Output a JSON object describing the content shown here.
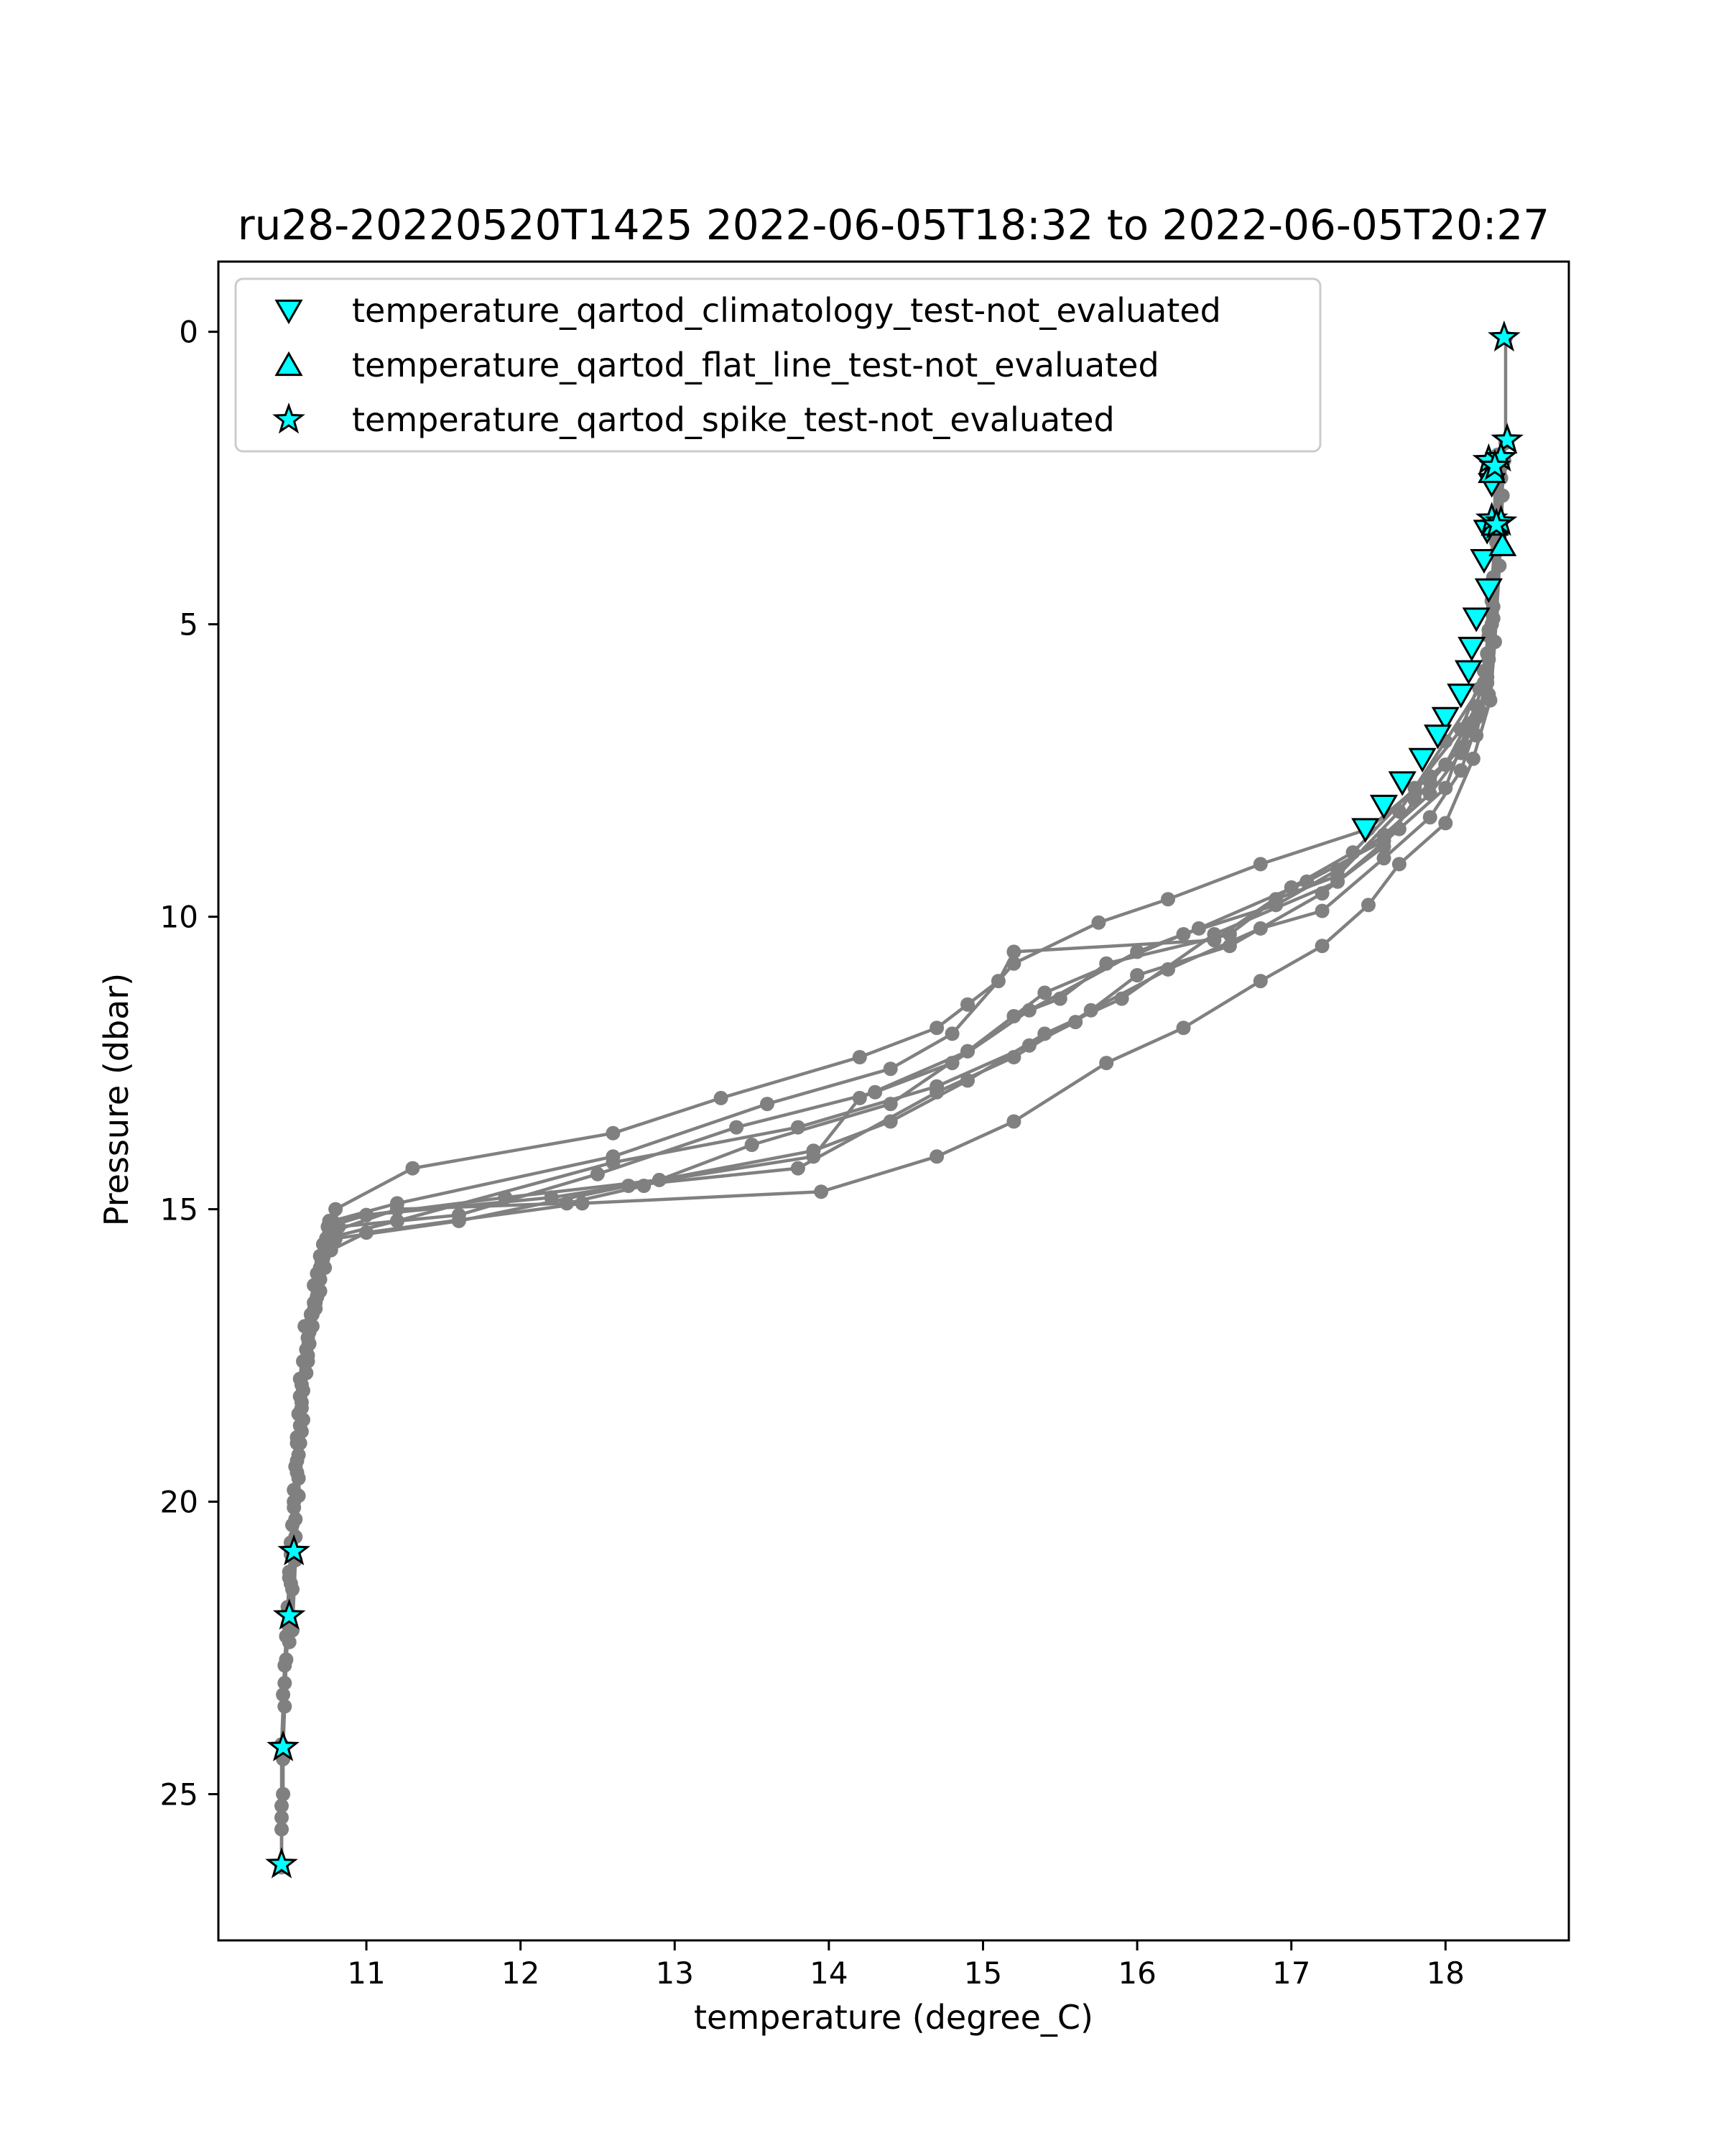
{
  "chart_data": {
    "type": "line",
    "title": "ru28-20220520T1425 2022-06-05T18:32 to 2022-06-05T20:27",
    "xlabel": "temperature (degree_C)",
    "ylabel": "Pressure (dbar)",
    "xlim": [
      10.04,
      18.8
    ],
    "ylim": [
      27.5,
      -1.2
    ],
    "y_inverted": true,
    "x_ticks": [
      11,
      12,
      13,
      14,
      15,
      16,
      17,
      18
    ],
    "y_ticks": [
      0,
      5,
      10,
      15,
      20,
      25
    ],
    "grid": false,
    "legend_position": "top-left",
    "colors": {
      "profile": "#808080",
      "flag_fill": "#00ffff",
      "flag_edge": "#000000"
    },
    "series": [
      {
        "type": "line",
        "points": [
          [
            18.39,
            0.1
          ],
          [
            18.39,
            1.9
          ],
          [
            18.33,
            3.3
          ],
          [
            18.3,
            4.3
          ],
          [
            18.28,
            5.2
          ],
          [
            18.27,
            6.0
          ],
          [
            18.2,
            6.6
          ],
          [
            18.1,
            7.2
          ],
          [
            17.9,
            7.9
          ],
          [
            17.6,
            8.6
          ],
          [
            17.3,
            9.2
          ],
          [
            16.9,
            9.8
          ],
          [
            16.3,
            10.3
          ],
          [
            15.4,
            11.3
          ],
          [
            14.9,
            12.3
          ],
          [
            14.2,
            13.1
          ],
          [
            13.9,
            14.1
          ],
          [
            12.2,
            14.8
          ],
          [
            11.0,
            15.1
          ],
          [
            10.75,
            15.3
          ],
          [
            10.7,
            15.8
          ],
          [
            10.68,
            16.5
          ],
          [
            10.62,
            17.2
          ],
          [
            10.58,
            18.0
          ],
          [
            10.57,
            18.7
          ],
          [
            10.55,
            19.5
          ],
          [
            10.54,
            20.3
          ],
          [
            10.53,
            20.85
          ],
          [
            10.51,
            21.4
          ],
          [
            10.5,
            22.0
          ],
          [
            10.48,
            22.7
          ],
          [
            10.47,
            23.5
          ],
          [
            10.46,
            24.2
          ],
          [
            10.46,
            25.0
          ],
          [
            10.45,
            25.6
          ],
          [
            10.45,
            26.2
          ]
        ]
      },
      {
        "type": "line",
        "points": [
          [
            18.33,
            2.3
          ],
          [
            18.32,
            3.4
          ],
          [
            18.3,
            4.6
          ],
          [
            18.25,
            5.8
          ],
          [
            18.1,
            6.8
          ],
          [
            17.8,
            7.8
          ],
          [
            17.4,
            8.9
          ],
          [
            17.0,
            9.5
          ],
          [
            16.5,
            10.4
          ],
          [
            15.2,
            10.6
          ],
          [
            15.1,
            11.1
          ],
          [
            14.9,
            11.5
          ],
          [
            14.7,
            11.9
          ],
          [
            14.2,
            12.4
          ],
          [
            13.3,
            13.1
          ],
          [
            12.6,
            13.7
          ],
          [
            11.3,
            14.3
          ],
          [
            10.8,
            15.0
          ],
          [
            10.72,
            15.6
          ],
          [
            10.66,
            16.3
          ],
          [
            10.6,
            17.0
          ],
          [
            10.57,
            17.9
          ],
          [
            10.55,
            18.9
          ],
          [
            10.53,
            20.0
          ],
          [
            10.51,
            20.9
          ],
          [
            10.49,
            21.8
          ],
          [
            10.47,
            22.8
          ],
          [
            10.45,
            24.15
          ],
          [
            10.45,
            25.2
          ]
        ]
      },
      {
        "type": "line",
        "points": [
          [
            18.35,
            2.4
          ],
          [
            18.33,
            3.6
          ],
          [
            18.3,
            4.8
          ],
          [
            18.27,
            5.9
          ],
          [
            18.2,
            6.9
          ],
          [
            17.9,
            7.6
          ],
          [
            17.5,
            8.5
          ],
          [
            16.8,
            9.1
          ],
          [
            16.2,
            9.7
          ],
          [
            15.75,
            10.1
          ],
          [
            15.2,
            10.8
          ],
          [
            14.8,
            12.0
          ],
          [
            14.4,
            12.6
          ],
          [
            13.6,
            13.2
          ],
          [
            12.6,
            14.1
          ],
          [
            11.2,
            14.9
          ],
          [
            10.78,
            15.2
          ],
          [
            10.7,
            16.0
          ],
          [
            10.64,
            16.8
          ],
          [
            10.59,
            17.6
          ],
          [
            10.56,
            18.5
          ],
          [
            10.54,
            19.4
          ],
          [
            10.52,
            20.4
          ],
          [
            10.5,
            21.3
          ],
          [
            10.48,
            22.3
          ],
          [
            10.46,
            23.3
          ]
        ]
      },
      {
        "type": "line",
        "points": [
          [
            18.32,
            2.6
          ],
          [
            18.32,
            3.8
          ],
          [
            18.3,
            5.0
          ],
          [
            18.22,
            6.1
          ],
          [
            18.0,
            7.0
          ],
          [
            17.7,
            8.2
          ],
          [
            17.3,
            9.3
          ],
          [
            16.9,
            9.7
          ],
          [
            16.6,
            10.3
          ],
          [
            15.8,
            10.8
          ],
          [
            15.5,
            11.4
          ],
          [
            15.2,
            11.7
          ],
          [
            14.9,
            12.3
          ],
          [
            14.4,
            13.2
          ],
          [
            13.5,
            13.9
          ],
          [
            12.8,
            14.6
          ],
          [
            12.3,
            14.9
          ],
          [
            11.2,
            15.0
          ],
          [
            10.76,
            15.4
          ],
          [
            10.68,
            16.1
          ],
          [
            10.63,
            17.1
          ],
          [
            10.58,
            18.3
          ],
          [
            10.56,
            19.2
          ],
          [
            10.53,
            20.1
          ],
          [
            10.5,
            21.2
          ],
          [
            10.49,
            22.1
          ],
          [
            10.47,
            23.1
          ],
          [
            10.46,
            24.4
          ],
          [
            10.45,
            25.4
          ],
          [
            10.45,
            26.25
          ]
        ]
      },
      {
        "type": "line",
        "points": [
          [
            18.38,
            2.2
          ],
          [
            18.35,
            3.5
          ],
          [
            18.31,
            4.7
          ],
          [
            18.28,
            5.6
          ],
          [
            18.2,
            6.4
          ],
          [
            18.0,
            7.4
          ],
          [
            17.8,
            8.0
          ],
          [
            17.6,
            8.8
          ],
          [
            17.2,
            9.6
          ],
          [
            16.6,
            10.5
          ],
          [
            16.0,
            11.0
          ],
          [
            15.6,
            11.8
          ],
          [
            15.3,
            12.2
          ],
          [
            14.7,
            12.9
          ],
          [
            13.8,
            13.6
          ],
          [
            12.6,
            14.2
          ],
          [
            11.2,
            15.2
          ],
          [
            10.74,
            15.5
          ],
          [
            10.7,
            16.2
          ],
          [
            10.65,
            16.8
          ],
          [
            10.61,
            17.4
          ],
          [
            10.57,
            18.2
          ],
          [
            10.55,
            19.0
          ],
          [
            10.53,
            19.8
          ],
          [
            10.51,
            20.7
          ]
        ]
      },
      {
        "type": "line",
        "points": [
          [
            18.36,
            2.5
          ],
          [
            18.34,
            3.7
          ],
          [
            18.31,
            4.9
          ],
          [
            18.28,
            6.2
          ],
          [
            18.1,
            7.1
          ],
          [
            17.9,
            7.7
          ],
          [
            17.6,
            8.7
          ],
          [
            17.1,
            9.4
          ],
          [
            16.4,
            10.2
          ],
          [
            16.0,
            10.6
          ],
          [
            15.3,
            11.6
          ],
          [
            14.8,
            12.5
          ],
          [
            14.3,
            13.0
          ],
          [
            13.4,
            13.6
          ],
          [
            12.5,
            14.4
          ],
          [
            11.6,
            15.1
          ],
          [
            10.82,
            15.3
          ],
          [
            10.71,
            15.9
          ],
          [
            10.66,
            16.6
          ],
          [
            10.62,
            17.5
          ],
          [
            10.59,
            18.6
          ],
          [
            10.56,
            19.6
          ],
          [
            10.54,
            20.6
          ],
          [
            10.52,
            21.5
          ],
          [
            10.5,
            22.4
          ]
        ]
      },
      {
        "type": "line",
        "points": [
          [
            18.36,
            2.3
          ],
          [
            18.34,
            3.2
          ],
          [
            18.3,
            4.4
          ],
          [
            18.27,
            5.5
          ],
          [
            18.23,
            6.5
          ],
          [
            18.1,
            7.5
          ],
          [
            17.9,
            8.3
          ],
          [
            17.6,
            9.0
          ],
          [
            17.2,
            9.9
          ],
          [
            16.8,
            10.2
          ],
          [
            16.2,
            10.9
          ],
          [
            15.7,
            11.6
          ],
          [
            15.2,
            12.4
          ],
          [
            14.7,
            13.0
          ],
          [
            13.8,
            14.3
          ],
          [
            12.7,
            14.6
          ],
          [
            11.6,
            15.2
          ],
          [
            10.8,
            15.5
          ],
          [
            10.73,
            16.0
          ],
          [
            10.67,
            16.6
          ],
          [
            10.63,
            17.3
          ],
          [
            10.59,
            18.1
          ],
          [
            10.57,
            19.0
          ],
          [
            10.55,
            19.9
          ]
        ]
      },
      {
        "type": "line",
        "points": [
          [
            18.37,
            2.8
          ],
          [
            18.35,
            4.0
          ],
          [
            18.32,
            5.3
          ],
          [
            18.29,
            6.3
          ],
          [
            18.18,
            7.3
          ],
          [
            18.0,
            8.4
          ],
          [
            17.7,
            9.1
          ],
          [
            17.5,
            9.8
          ],
          [
            17.2,
            10.5
          ],
          [
            16.8,
            11.1
          ],
          [
            16.3,
            11.9
          ],
          [
            15.8,
            12.5
          ],
          [
            15.2,
            13.5
          ],
          [
            14.7,
            14.1
          ],
          [
            13.95,
            14.7
          ],
          [
            12.4,
            14.9
          ],
          [
            11.0,
            15.4
          ],
          [
            10.77,
            15.7
          ],
          [
            10.7,
            16.4
          ],
          [
            10.65,
            17.0
          ],
          [
            10.61,
            17.8
          ],
          [
            10.58,
            18.8
          ],
          [
            10.56,
            19.9
          ],
          [
            10.54,
            21.0
          ],
          [
            10.52,
            22.2
          ]
        ]
      },
      {
        "type": "line",
        "points": [
          [
            18.34,
            2.1
          ],
          [
            18.33,
            3.1
          ],
          [
            18.31,
            4.2
          ],
          [
            18.28,
            5.1
          ],
          [
            18.25,
            6.0
          ],
          [
            18.15,
            6.7
          ],
          [
            18.0,
            7.8
          ],
          [
            17.7,
            8.5
          ],
          [
            17.3,
            9.4
          ],
          [
            16.5,
            10.3
          ],
          [
            15.9,
            11.4
          ],
          [
            15.4,
            12.0
          ],
          [
            14.9,
            12.8
          ],
          [
            14.4,
            13.5
          ],
          [
            13.9,
            14.0
          ],
          [
            12.9,
            14.5
          ],
          [
            11.9,
            14.8
          ],
          [
            11.0,
            15.1
          ],
          [
            10.76,
            15.2
          ],
          [
            10.72,
            15.8
          ],
          [
            10.67,
            16.7
          ],
          [
            10.62,
            17.6
          ],
          [
            10.58,
            18.4
          ],
          [
            10.55,
            19.3
          ]
        ]
      }
    ],
    "flags": [
      {
        "name": "temperature_qartod_climatology_test-not_evaluated",
        "marker": "triangle-down",
        "points": [
          [
            18.3,
            2.6
          ],
          [
            18.27,
            3.4
          ],
          [
            18.25,
            3.9
          ],
          [
            18.28,
            4.4
          ],
          [
            18.2,
            4.9
          ],
          [
            18.17,
            5.4
          ],
          [
            18.15,
            5.8
          ],
          [
            18.1,
            6.2
          ],
          [
            18.0,
            6.6
          ],
          [
            17.95,
            6.9
          ],
          [
            17.85,
            7.3
          ],
          [
            17.72,
            7.7
          ],
          [
            17.6,
            8.1
          ],
          [
            17.48,
            8.5
          ]
        ]
      },
      {
        "name": "temperature_qartod_flat_line_test-not_evaluated",
        "marker": "triangle-up",
        "points": [
          [
            18.3,
            2.4
          ],
          [
            18.32,
            3.3
          ],
          [
            18.37,
            3.65
          ]
        ]
      },
      {
        "name": "temperature_qartod_spike_test-not_evaluated",
        "marker": "star",
        "points": [
          [
            18.38,
            0.1
          ],
          [
            18.4,
            1.85
          ],
          [
            18.28,
            2.2
          ],
          [
            18.36,
            2.15
          ],
          [
            18.32,
            2.3
          ],
          [
            18.3,
            3.2
          ],
          [
            18.36,
            3.25
          ],
          [
            18.33,
            3.3
          ],
          [
            10.53,
            20.85
          ],
          [
            10.5,
            21.95
          ],
          [
            10.46,
            24.2
          ],
          [
            10.45,
            26.2
          ]
        ]
      }
    ]
  }
}
